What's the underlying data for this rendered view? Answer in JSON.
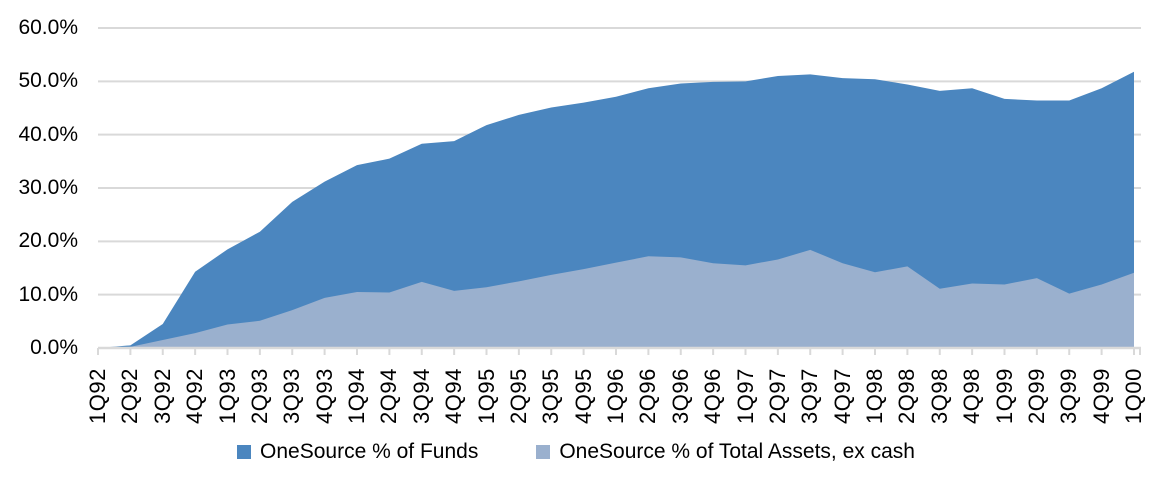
{
  "chart_data": {
    "type": "area",
    "title": "",
    "categories": [
      "1Q92",
      "2Q92",
      "3Q92",
      "4Q92",
      "1Q93",
      "2Q93",
      "3Q93",
      "4Q93",
      "1Q94",
      "2Q94",
      "3Q94",
      "4Q94",
      "1Q95",
      "2Q95",
      "3Q95",
      "4Q95",
      "1Q96",
      "2Q96",
      "3Q96",
      "4Q96",
      "1Q97",
      "2Q97",
      "3Q97",
      "4Q97",
      "1Q98",
      "2Q98",
      "3Q98",
      "4Q98",
      "1Q99",
      "2Q99",
      "3Q99",
      "4Q99",
      "1Q00"
    ],
    "series": [
      {
        "name": "OneSource % of Funds",
        "color": "#4B86BF",
        "values": [
          0.0,
          0.5,
          4.5,
          14.3,
          18.5,
          21.8,
          27.4,
          31.2,
          34.3,
          35.5,
          38.3,
          38.8,
          41.8,
          43.7,
          45.1,
          46.0,
          47.1,
          48.7,
          49.6,
          49.9,
          50.0,
          51.0,
          51.3,
          50.6,
          50.4,
          49.4,
          48.2,
          48.7,
          46.7,
          46.4,
          46.4,
          48.7,
          51.8
        ]
      },
      {
        "name": "OneSource % of Total Assets, ex cash",
        "color": "#9AB0CE",
        "values": [
          0.0,
          0.2,
          1.5,
          2.8,
          4.4,
          5.1,
          7.1,
          9.4,
          10.5,
          10.4,
          12.4,
          10.7,
          11.4,
          12.5,
          13.7,
          14.8,
          16.0,
          17.2,
          17.0,
          15.9,
          15.5,
          16.6,
          18.4,
          15.9,
          14.2,
          15.3,
          11.1,
          12.1,
          11.9,
          13.1,
          10.2,
          11.9,
          14.1
        ]
      }
    ],
    "ylim": [
      0,
      60
    ],
    "y_ticks": [
      0,
      10,
      20,
      30,
      40,
      50,
      60
    ],
    "y_tick_labels": [
      "0.0%",
      "10.0%",
      "20.0%",
      "30.0%",
      "40.0%",
      "50.0%",
      "60.0%"
    ],
    "grid": true,
    "legend_position": "bottom",
    "series_overlap": "overlay",
    "gridline_color": "#D9D9D9"
  }
}
